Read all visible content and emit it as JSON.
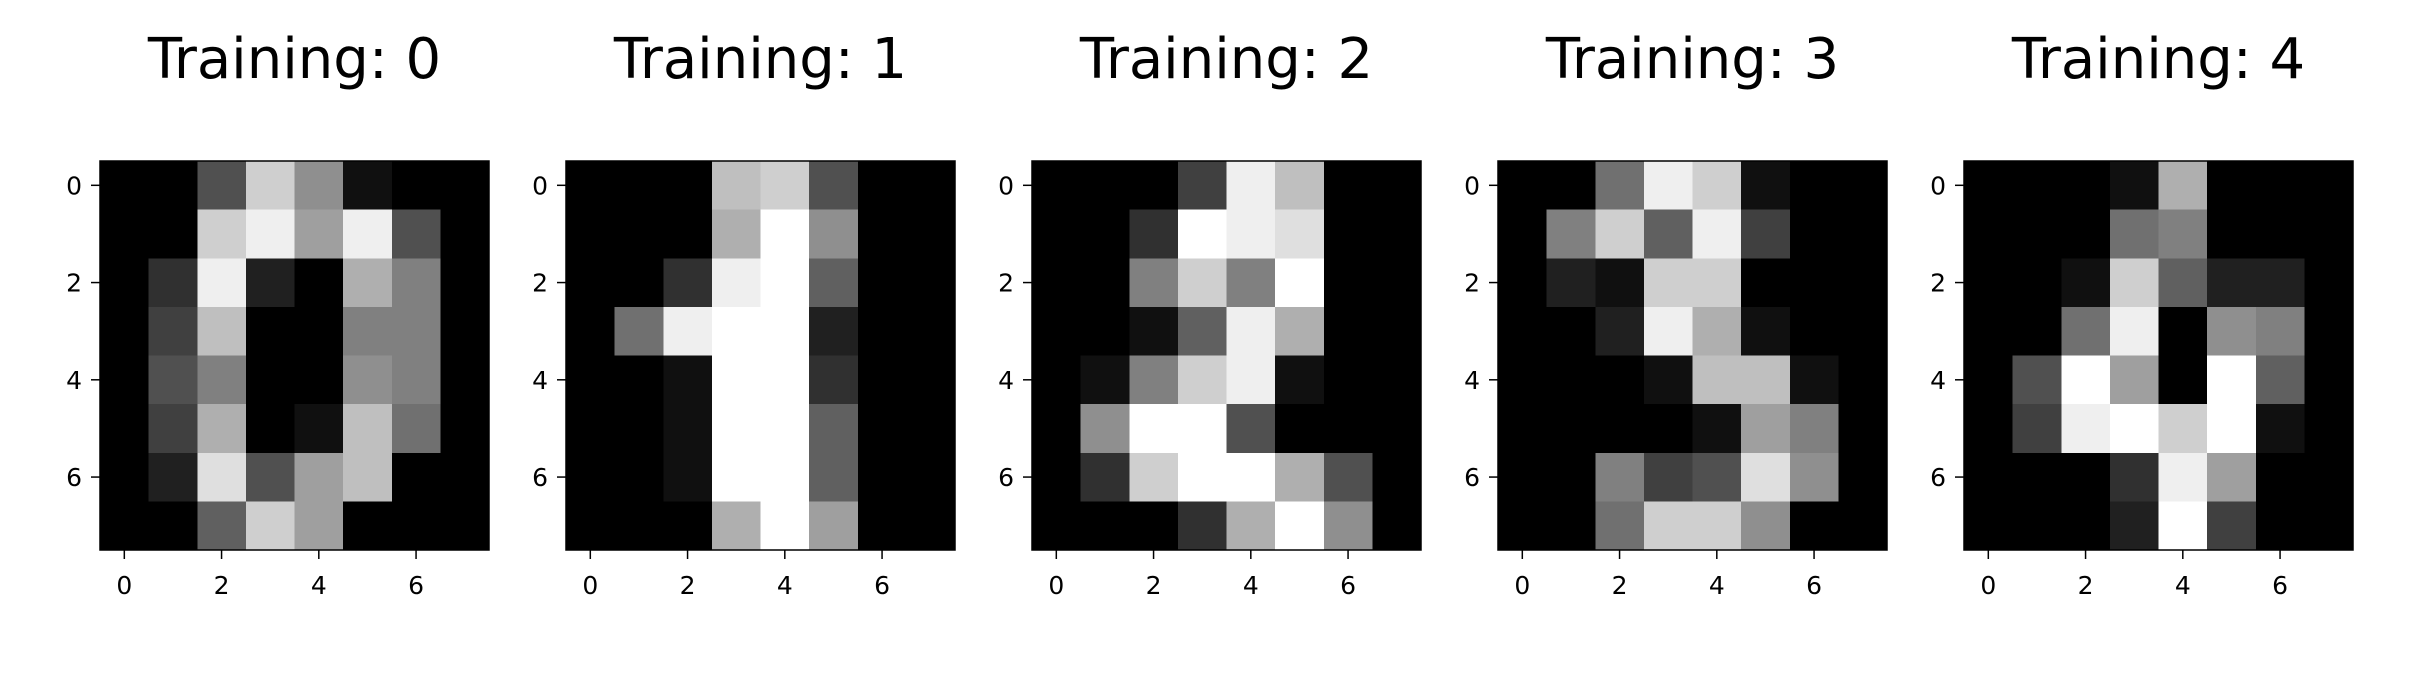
{
  "chart_data": [
    {
      "type": "heatmap",
      "title": "Training: 0",
      "colormap": "gray",
      "xticks": [
        0,
        2,
        4,
        6
      ],
      "yticks": [
        0,
        2,
        4,
        6
      ],
      "xlim": [
        -0.5,
        7.5
      ],
      "ylim": [
        7.5,
        -0.5
      ],
      "vmax": 16,
      "grid": false,
      "values": [
        [
          0,
          0,
          5,
          13,
          9,
          1,
          0,
          0
        ],
        [
          0,
          0,
          13,
          15,
          10,
          15,
          5,
          0
        ],
        [
          0,
          3,
          15,
          2,
          0,
          11,
          8,
          0
        ],
        [
          0,
          4,
          12,
          0,
          0,
          8,
          8,
          0
        ],
        [
          0,
          5,
          8,
          0,
          0,
          9,
          8,
          0
        ],
        [
          0,
          4,
          11,
          0,
          1,
          12,
          7,
          0
        ],
        [
          0,
          2,
          14,
          5,
          10,
          12,
          0,
          0
        ],
        [
          0,
          0,
          6,
          13,
          10,
          0,
          0,
          0
        ]
      ]
    },
    {
      "type": "heatmap",
      "title": "Training: 1",
      "colormap": "gray",
      "xticks": [
        0,
        2,
        4,
        6
      ],
      "yticks": [
        0,
        2,
        4,
        6
      ],
      "xlim": [
        -0.5,
        7.5
      ],
      "ylim": [
        7.5,
        -0.5
      ],
      "vmax": 16,
      "grid": false,
      "values": [
        [
          0,
          0,
          0,
          12,
          13,
          5,
          0,
          0
        ],
        [
          0,
          0,
          0,
          11,
          16,
          9,
          0,
          0
        ],
        [
          0,
          0,
          3,
          15,
          16,
          6,
          0,
          0
        ],
        [
          0,
          7,
          15,
          16,
          16,
          2,
          0,
          0
        ],
        [
          0,
          0,
          1,
          16,
          16,
          3,
          0,
          0
        ],
        [
          0,
          0,
          1,
          16,
          16,
          6,
          0,
          0
        ],
        [
          0,
          0,
          1,
          16,
          16,
          6,
          0,
          0
        ],
        [
          0,
          0,
          0,
          11,
          16,
          10,
          0,
          0
        ]
      ]
    },
    {
      "type": "heatmap",
      "title": "Training: 2",
      "colormap": "gray",
      "xticks": [
        0,
        2,
        4,
        6
      ],
      "yticks": [
        0,
        2,
        4,
        6
      ],
      "xlim": [
        -0.5,
        7.5
      ],
      "ylim": [
        7.5,
        -0.5
      ],
      "vmax": 16,
      "grid": false,
      "values": [
        [
          0,
          0,
          0,
          4,
          15,
          12,
          0,
          0
        ],
        [
          0,
          0,
          3,
          16,
          15,
          14,
          0,
          0
        ],
        [
          0,
          0,
          8,
          13,
          8,
          16,
          0,
          0
        ],
        [
          0,
          0,
          1,
          6,
          15,
          11,
          0,
          0
        ],
        [
          0,
          1,
          8,
          13,
          15,
          1,
          0,
          0
        ],
        [
          0,
          9,
          16,
          16,
          5,
          0,
          0,
          0
        ],
        [
          0,
          3,
          13,
          16,
          16,
          11,
          5,
          0
        ],
        [
          0,
          0,
          0,
          3,
          11,
          16,
          9,
          0
        ]
      ]
    },
    {
      "type": "heatmap",
      "title": "Training: 3",
      "colormap": "gray",
      "xticks": [
        0,
        2,
        4,
        6
      ],
      "yticks": [
        0,
        2,
        4,
        6
      ],
      "xlim": [
        -0.5,
        7.5
      ],
      "ylim": [
        7.5,
        -0.5
      ],
      "vmax": 16,
      "grid": false,
      "values": [
        [
          0,
          0,
          7,
          15,
          13,
          1,
          0,
          0
        ],
        [
          0,
          8,
          13,
          6,
          15,
          4,
          0,
          0
        ],
        [
          0,
          2,
          1,
          13,
          13,
          0,
          0,
          0
        ],
        [
          0,
          0,
          2,
          15,
          11,
          1,
          0,
          0
        ],
        [
          0,
          0,
          0,
          1,
          12,
          12,
          1,
          0
        ],
        [
          0,
          0,
          0,
          0,
          1,
          10,
          8,
          0
        ],
        [
          0,
          0,
          8,
          4,
          5,
          14,
          9,
          0
        ],
        [
          0,
          0,
          7,
          13,
          13,
          9,
          0,
          0
        ]
      ]
    },
    {
      "type": "heatmap",
      "title": "Training: 4",
      "colormap": "gray",
      "xticks": [
        0,
        2,
        4,
        6
      ],
      "yticks": [
        0,
        2,
        4,
        6
      ],
      "xlim": [
        -0.5,
        7.5
      ],
      "ylim": [
        7.5,
        -0.5
      ],
      "vmax": 16,
      "grid": false,
      "values": [
        [
          0,
          0,
          0,
          1,
          11,
          0,
          0,
          0
        ],
        [
          0,
          0,
          0,
          7,
          8,
          0,
          0,
          0
        ],
        [
          0,
          0,
          1,
          13,
          6,
          2,
          2,
          0
        ],
        [
          0,
          0,
          7,
          15,
          0,
          9,
          8,
          0
        ],
        [
          0,
          5,
          16,
          10,
          0,
          16,
          6,
          0
        ],
        [
          0,
          4,
          15,
          16,
          13,
          16,
          1,
          0
        ],
        [
          0,
          0,
          0,
          3,
          15,
          10,
          0,
          0
        ],
        [
          0,
          0,
          0,
          2,
          16,
          4,
          0,
          0
        ]
      ]
    }
  ]
}
